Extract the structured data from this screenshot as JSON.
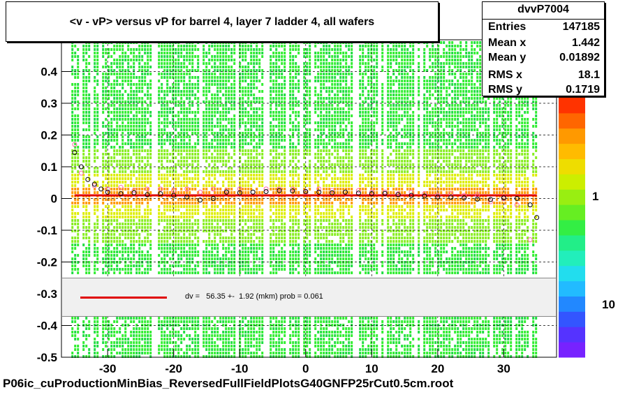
{
  "title": "<v - vP>       versus   vP for barrel 4, layer 7 ladder 4, all wafers",
  "stats": {
    "name": "dvvP7004",
    "rows": [
      {
        "key": "Entries",
        "value": "147185"
      },
      {
        "key": "Mean x",
        "value": "1.442"
      },
      {
        "key": "Mean y",
        "value": "0.01892"
      },
      {
        "key": "RMS x",
        "value": "18.1"
      },
      {
        "key": "RMS y",
        "value": "0.1719"
      }
    ]
  },
  "fit_label": "dv =   56.35 +-  1.92 (mkm) prob = 0.061",
  "filename": "P06ic_cuProductionMinBias_ReversedFullFieldPlotsG40GNFP25rCut0.5cm.root",
  "colors": {
    "fit_line": "#e00000",
    "histogram_green": "#33ee33",
    "histogram_yellow": "#ddee00",
    "histogram_orange": "#ff9900"
  },
  "chart_data": {
    "type": "heatmap",
    "xlim": [
      -37,
      38
    ],
    "ylim": [
      -0.5,
      0.5
    ],
    "x_ticks": [
      -30,
      -20,
      -10,
      0,
      10,
      20,
      30
    ],
    "x_tick_labels": [
      "-30",
      "-20",
      "-10",
      "0",
      "10",
      "20",
      "30"
    ],
    "y_ticks": [
      -0.5,
      -0.4,
      -0.3,
      -0.2,
      -0.1,
      0,
      0.1,
      0.2,
      0.3,
      0.4
    ],
    "y_tick_labels": [
      "-0.5",
      "-0.4",
      "-0.3",
      "-0.2",
      "-0.1",
      "0",
      "0.1",
      "0.2",
      "0.3",
      "0.4"
    ],
    "color_scale_labels": [
      "1",
      "10"
    ],
    "grid": true,
    "fit": {
      "type": "line",
      "value": 0.01
    },
    "profile_black": {
      "x": [
        -35,
        -34,
        -33,
        -32,
        -31,
        -30,
        -28,
        -26,
        -24,
        -22,
        -20,
        -18,
        -16,
        -14,
        -12,
        -10,
        -8,
        -6,
        -4,
        -2,
        0,
        2,
        4,
        6,
        8,
        10,
        12,
        14,
        16,
        18,
        20,
        22,
        24,
        26,
        28,
        30,
        32,
        34,
        35
      ],
      "y": [
        0.145,
        0.1,
        0.06,
        0.045,
        0.03,
        0.02,
        0.015,
        0.018,
        0.012,
        0.015,
        0.01,
        0.005,
        -0.005,
        0.0,
        0.02,
        0.018,
        0.02,
        0.022,
        0.025,
        0.024,
        0.022,
        0.02,
        0.018,
        0.02,
        0.017,
        0.015,
        0.016,
        0.012,
        0.01,
        0.008,
        0.005,
        0.004,
        0.002,
        -0.002,
        -0.003,
        0.002,
        0.0,
        -0.02,
        -0.06
      ]
    },
    "profile_pink": {
      "x": [
        -35,
        -34,
        -32,
        -30,
        -28,
        -26,
        -24,
        -22,
        -20,
        -18,
        -16,
        -14,
        -12,
        -10,
        -8,
        -6,
        -4,
        -2,
        0,
        2,
        4,
        6,
        8,
        10,
        12,
        14,
        16,
        18,
        20,
        22,
        24,
        26,
        28,
        30,
        32,
        34
      ],
      "y": [
        0.17,
        0.08,
        0.04,
        0.03,
        0.035,
        0.025,
        0.03,
        0.03,
        0.025,
        0.03,
        0.02,
        0.03,
        0.025,
        0.03,
        0.02,
        0.03,
        0.03,
        0.03,
        0.02,
        0.03,
        0.025,
        0.02,
        0.025,
        0.02,
        0.02,
        0.015,
        0.02,
        0.015,
        0.01,
        0.015,
        0.01,
        0.012,
        -0.01,
        0.0,
        -0.02,
        -0.13
      ]
    }
  }
}
